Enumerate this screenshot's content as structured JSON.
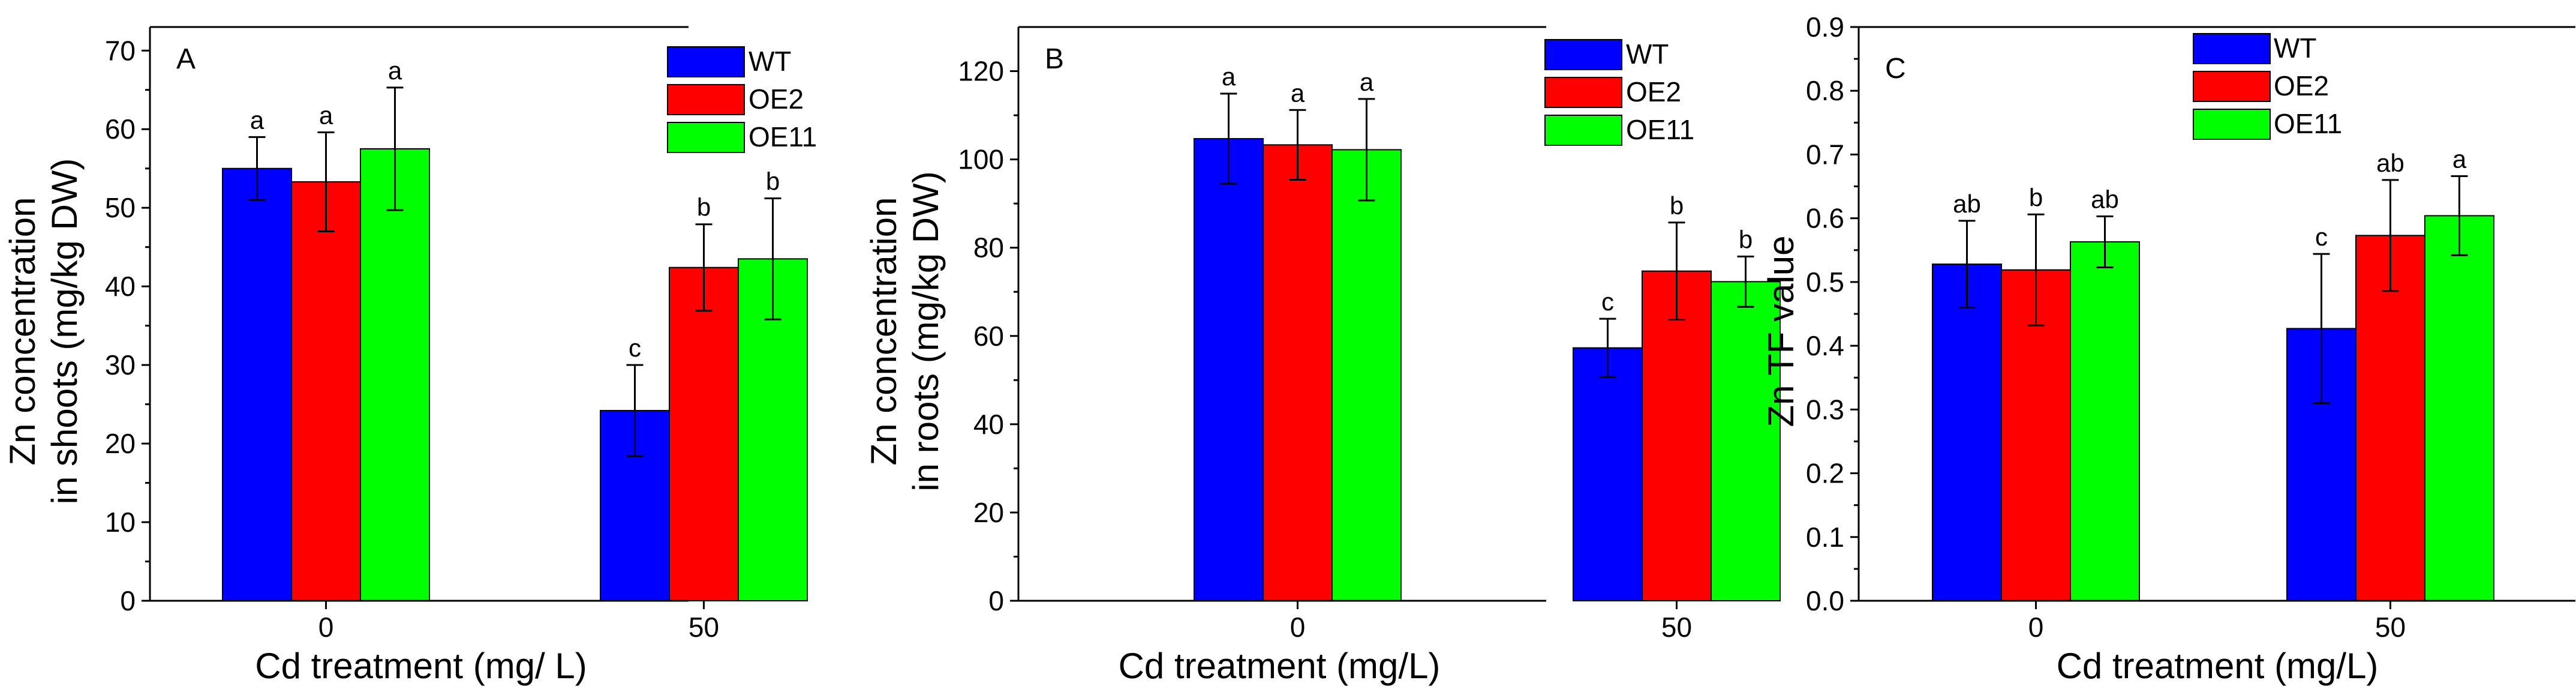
{
  "chart_data": [
    {
      "type": "bar",
      "panel": "A",
      "categories": [
        "0",
        "50"
      ],
      "series": [
        {
          "name": "WT",
          "color": "#0000ff",
          "values": [
            55.0,
            24.2
          ],
          "errors": [
            4.0,
            5.8
          ],
          "labels": [
            "a",
            "c"
          ]
        },
        {
          "name": "OE2",
          "color": "#ff0000",
          "values": [
            53.3,
            42.4
          ],
          "errors": [
            6.3,
            5.5
          ],
          "labels": [
            "a",
            "b"
          ]
        },
        {
          "name": "OE11",
          "color": "#00ff00",
          "values": [
            57.5,
            43.5
          ],
          "errors": [
            7.8,
            7.7
          ],
          "labels": [
            "a",
            "b"
          ]
        }
      ],
      "xlabel": "Cd treatment (mg/ L)",
      "ylabel_lines": [
        "Zn concentration",
        "in shoots (mg/kg DW)"
      ],
      "ylim": [
        0,
        73
      ],
      "yticks": [
        0,
        10,
        20,
        30,
        40,
        50,
        60,
        70
      ],
      "ytick_labels": [
        "0",
        "10",
        "20",
        "30",
        "40",
        "50",
        "60",
        "70"
      ],
      "legend_position": "top-right"
    },
    {
      "type": "bar",
      "panel": "B",
      "categories": [
        "0",
        "50"
      ],
      "series": [
        {
          "name": "WT",
          "color": "#0000ff",
          "values": [
            104.7,
            57.3
          ],
          "errors": [
            10.2,
            6.6
          ],
          "labels": [
            "a",
            "c"
          ]
        },
        {
          "name": "OE2",
          "color": "#ff0000",
          "values": [
            103.3,
            74.7
          ],
          "errors": [
            7.9,
            11.0
          ],
          "labels": [
            "a",
            "b"
          ]
        },
        {
          "name": "OE11",
          "color": "#00ff00",
          "values": [
            102.2,
            72.3
          ],
          "errors": [
            11.5,
            5.7
          ],
          "labels": [
            "a",
            "b"
          ]
        }
      ],
      "xlabel": "Cd treatment (mg/L)",
      "ylabel_lines": [
        "Zn concentration",
        "in roots (mg/kg DW)"
      ],
      "ylim": [
        0,
        130
      ],
      "yticks": [
        0,
        20,
        40,
        60,
        80,
        100,
        120
      ],
      "ytick_labels": [
        "0",
        "20",
        "40",
        "60",
        "80",
        "100",
        "120"
      ],
      "legend_position": "top-right"
    },
    {
      "type": "bar",
      "panel": "C",
      "categories": [
        "0",
        "50"
      ],
      "series": [
        {
          "name": "WT",
          "color": "#0000ff",
          "values": [
            0.528,
            0.427
          ],
          "errors": [
            0.068,
            0.117
          ],
          "labels": [
            "ab",
            "c"
          ]
        },
        {
          "name": "OE2",
          "color": "#ff0000",
          "values": [
            0.519,
            0.573
          ],
          "errors": [
            0.087,
            0.087
          ],
          "labels": [
            "b",
            "ab"
          ]
        },
        {
          "name": "OE11",
          "color": "#00ff00",
          "values": [
            0.563,
            0.604
          ],
          "errors": [
            0.04,
            0.062
          ],
          "labels": [
            "ab",
            "a"
          ]
        }
      ],
      "xlabel": "Cd treatment (mg/L)",
      "ylabel_lines": [
        "Zn TF value"
      ],
      "ylim": [
        0,
        0.9
      ],
      "yticks": [
        0,
        0.1,
        0.2,
        0.3,
        0.4,
        0.5,
        0.6,
        0.7,
        0.8,
        0.9
      ],
      "ytick_labels": [
        "0.0",
        "0.1",
        "0.2",
        "0.3",
        "0.4",
        "0.5",
        "0.6",
        "0.7",
        "0.8",
        "0.9"
      ],
      "legend_position": "top-center"
    }
  ]
}
